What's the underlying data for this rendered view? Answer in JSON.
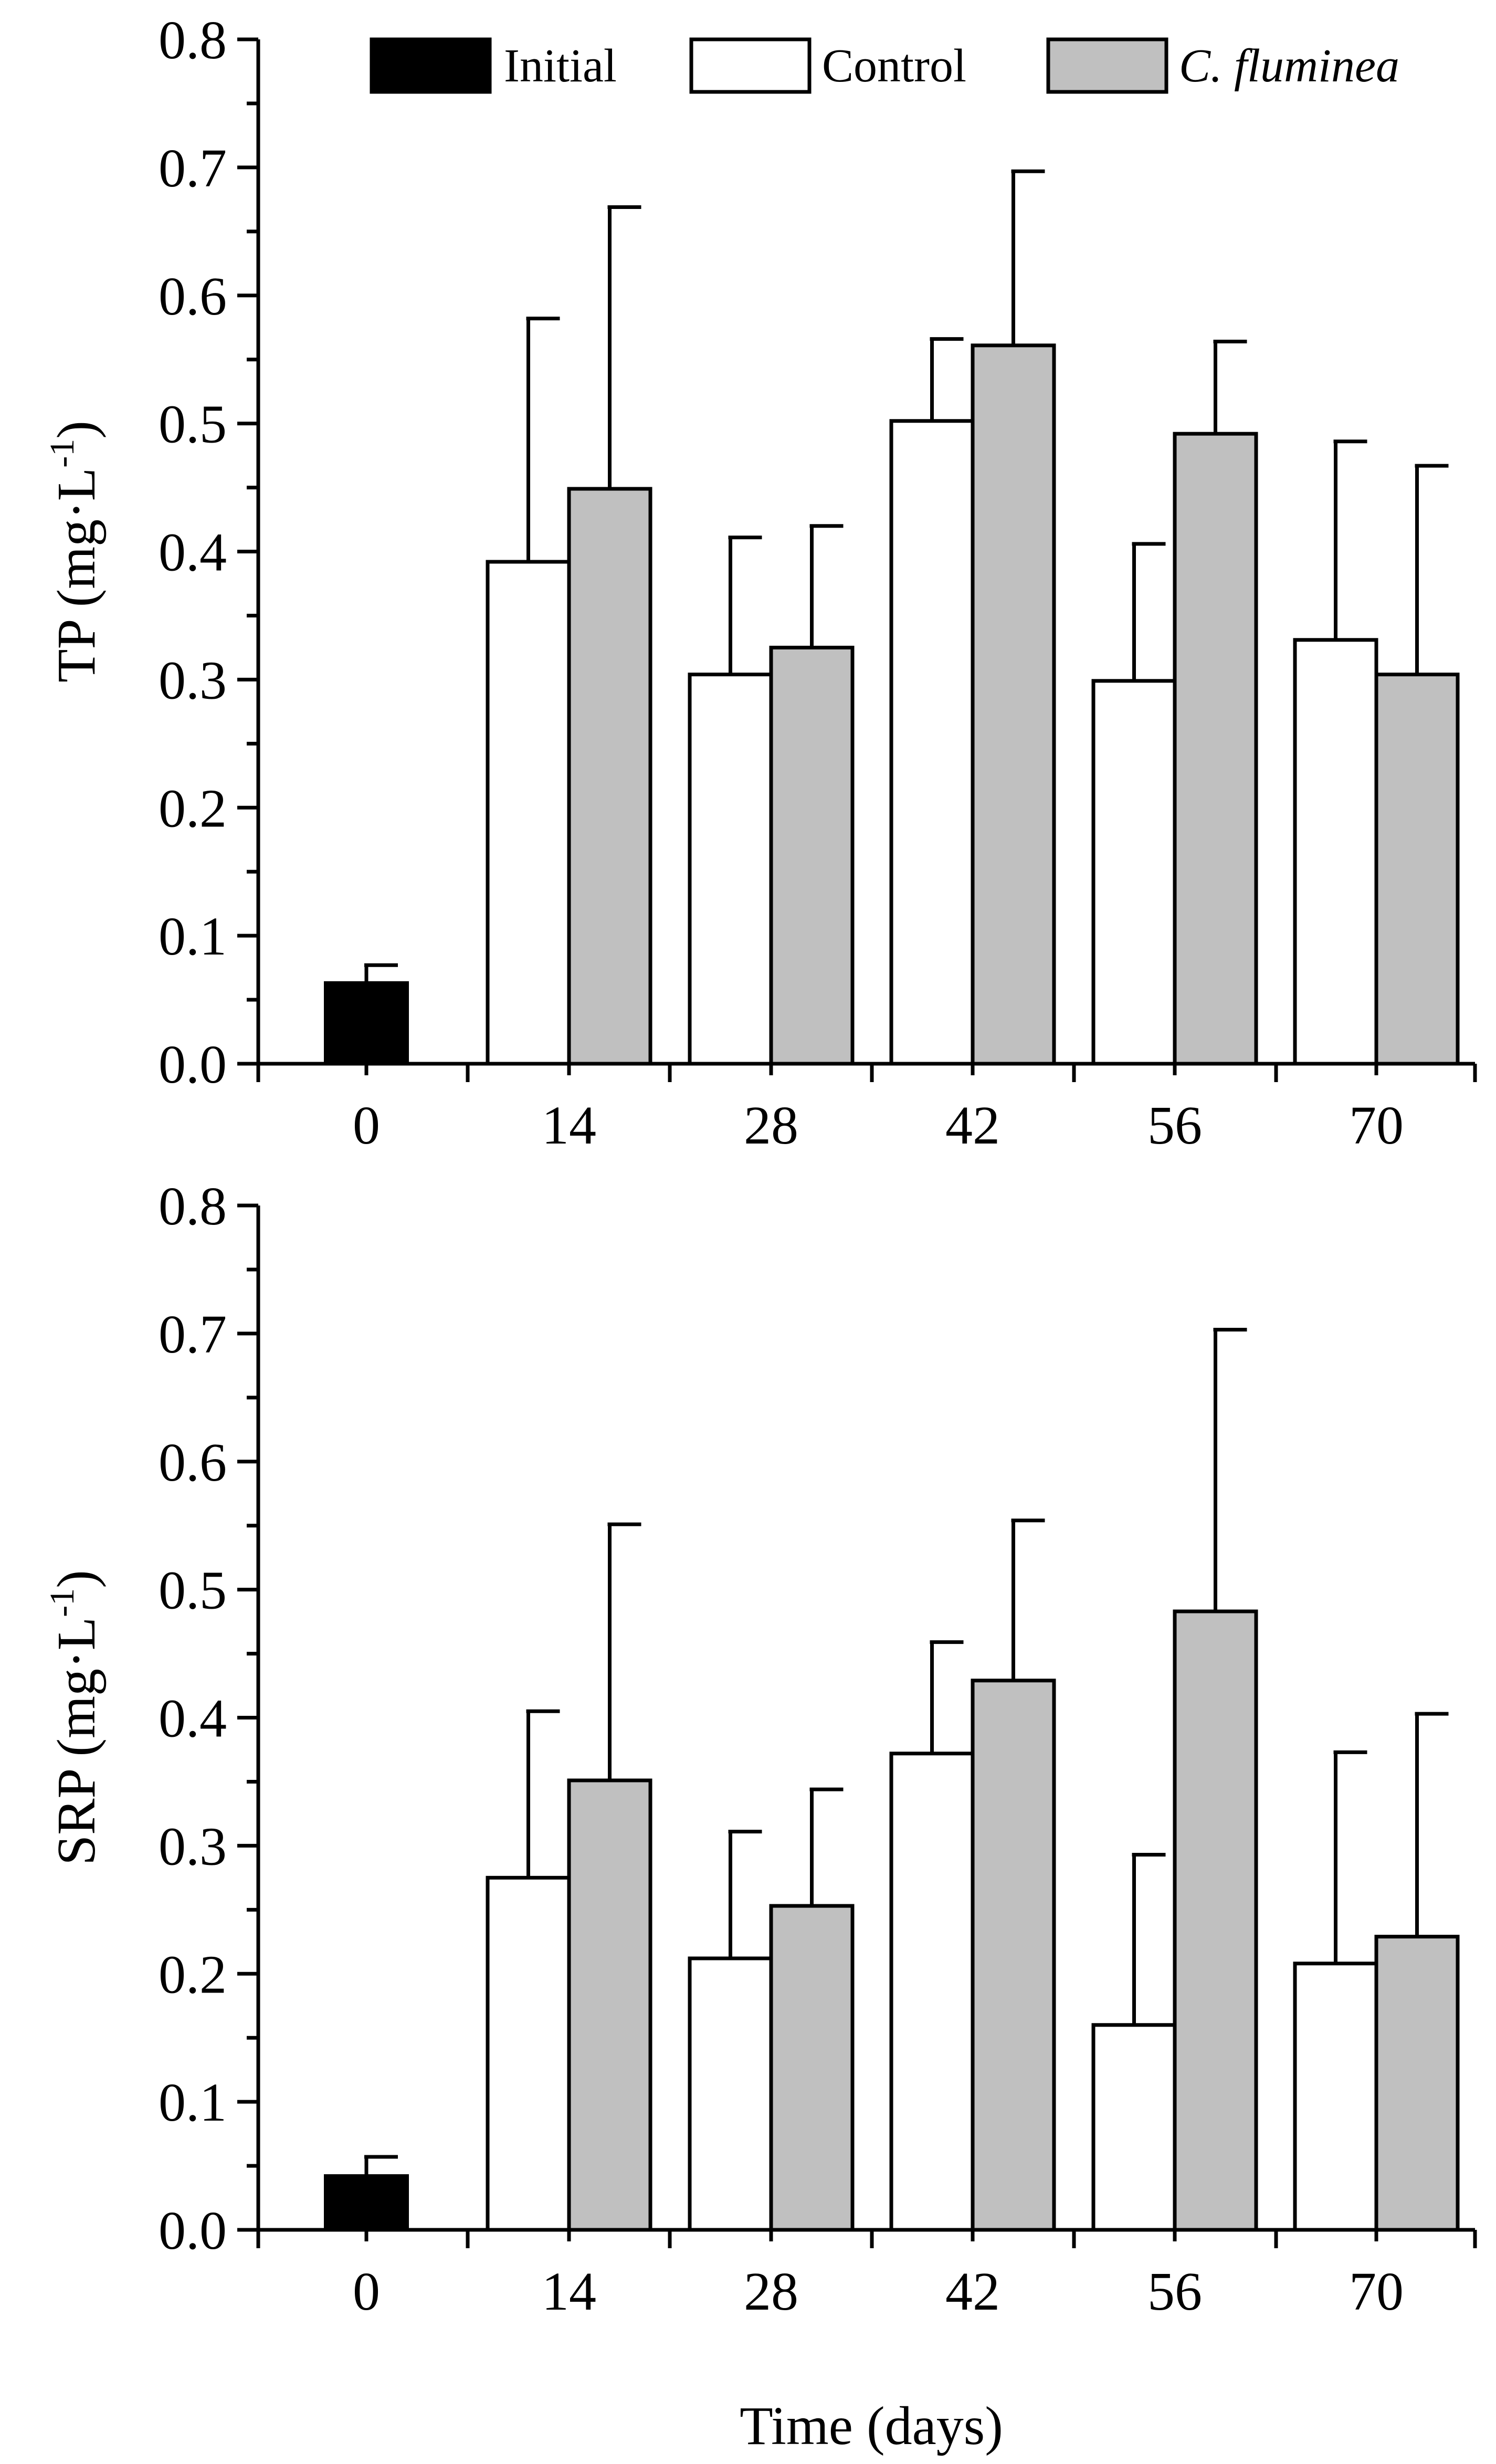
{
  "legend": [
    {
      "label": "Initial",
      "color": "#000000",
      "italic": false
    },
    {
      "label": "Control",
      "color": "#ffffff",
      "italic": false
    },
    {
      "label": "C. fluminea",
      "color": "#c0c0c0",
      "italic": true
    }
  ],
  "xlabel": "Time (days)",
  "chart_data": [
    {
      "type": "bar",
      "ylabel": {
        "main": "TP (mg",
        "dot": "·",
        "unit": "L",
        "exp": "-1",
        "close": ")"
      },
      "ylim": [
        0,
        0.8
      ],
      "yticks": [
        "0.0",
        "0.1",
        "0.2",
        "0.3",
        "0.4",
        "0.5",
        "0.6",
        "0.7",
        "0.8"
      ],
      "categories": [
        "0",
        "14",
        "28",
        "42",
        "56",
        "70"
      ],
      "series": [
        {
          "name": "Initial",
          "values": [
            0.063,
            null,
            null,
            null,
            null,
            null
          ],
          "errors": [
            0.014,
            null,
            null,
            null,
            null,
            null
          ]
        },
        {
          "name": "Control",
          "values": [
            null,
            0.392,
            0.304,
            0.502,
            0.299,
            0.331
          ],
          "errors": [
            null,
            0.19,
            0.107,
            0.064,
            0.107,
            0.155
          ]
        },
        {
          "name": "C. fluminea",
          "values": [
            null,
            0.449,
            0.325,
            0.561,
            0.492,
            0.304
          ],
          "errors": [
            null,
            0.22,
            0.095,
            0.136,
            0.072,
            0.163
          ]
        }
      ]
    },
    {
      "type": "bar",
      "ylabel": {
        "main": "SRP (mg",
        "dot": "·",
        "unit": "L",
        "exp": "-1",
        "close": ")"
      },
      "ylim": [
        0,
        0.8
      ],
      "yticks": [
        "0.0",
        "0.1",
        "0.2",
        "0.3",
        "0.4",
        "0.5",
        "0.6",
        "0.7",
        "0.8"
      ],
      "categories": [
        "0",
        "14",
        "28",
        "42",
        "56",
        "70"
      ],
      "series": [
        {
          "name": "Initial",
          "values": [
            0.042,
            null,
            null,
            null,
            null,
            null
          ],
          "errors": [
            0.015,
            null,
            null,
            null,
            null,
            null
          ]
        },
        {
          "name": "Control",
          "values": [
            null,
            0.275,
            0.212,
            0.372,
            0.16,
            0.208
          ],
          "errors": [
            null,
            0.13,
            0.099,
            0.087,
            0.133,
            0.165
          ]
        },
        {
          "name": "C. fluminea",
          "values": [
            null,
            0.351,
            0.253,
            0.429,
            0.483,
            0.229
          ],
          "errors": [
            null,
            0.2,
            0.091,
            0.125,
            0.22,
            0.174
          ]
        }
      ]
    }
  ]
}
